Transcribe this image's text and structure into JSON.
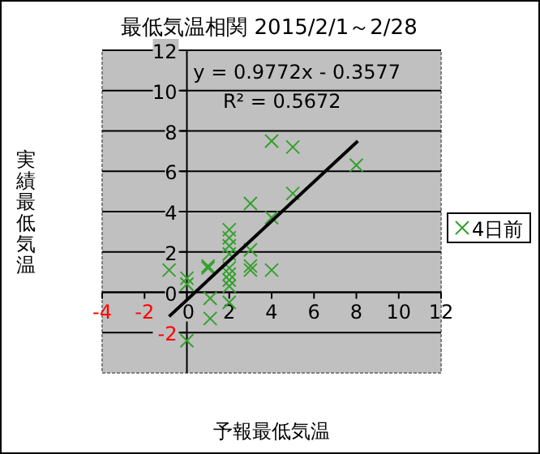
{
  "chart_data": {
    "type": "scatter",
    "title": "最低気温相関 2015/2/1～2/28",
    "xlabel": "予報最低気温",
    "ylabel": "実績最低気温",
    "annotations": [
      "y = 0.9772x - 0.3577",
      "R² = 0.5672"
    ],
    "series": [
      {
        "name": "4日前",
        "color": "#33a02c",
        "marker": "cross",
        "x": [
          -0.84,
          0,
          0,
          0,
          1,
          1,
          1.1,
          1.1,
          2,
          2,
          2,
          2,
          2,
          2,
          2,
          2,
          2,
          3,
          3,
          3,
          3,
          4,
          4,
          4,
          5,
          5,
          8
        ],
        "values": [
          1.1,
          0.7,
          0.4,
          -2.4,
          1.2,
          1.3,
          -0.3,
          -1.3,
          3.1,
          2.7,
          2.3,
          1.9,
          1.2,
          0.9,
          0.6,
          0.3,
          -0.5,
          4.4,
          2.1,
          1.3,
          1.1,
          1.1,
          3.7,
          7.5,
          7.2,
          4.9,
          6.3
        ]
      },
      {
        "type": "line",
        "color": "#000000",
        "x": [
          -0.84,
          8.07
        ],
        "values": [
          -1.2,
          7.5
        ]
      }
    ],
    "xlim": [
      -4,
      12
    ],
    "ylim": [
      -4,
      12
    ],
    "xticks": [
      -4,
      -2,
      0,
      2,
      4,
      6,
      8,
      10,
      12
    ],
    "yticks": [
      -2,
      0,
      2,
      4,
      6,
      8,
      10,
      12
    ],
    "grid": "y",
    "legend": "right"
  }
}
